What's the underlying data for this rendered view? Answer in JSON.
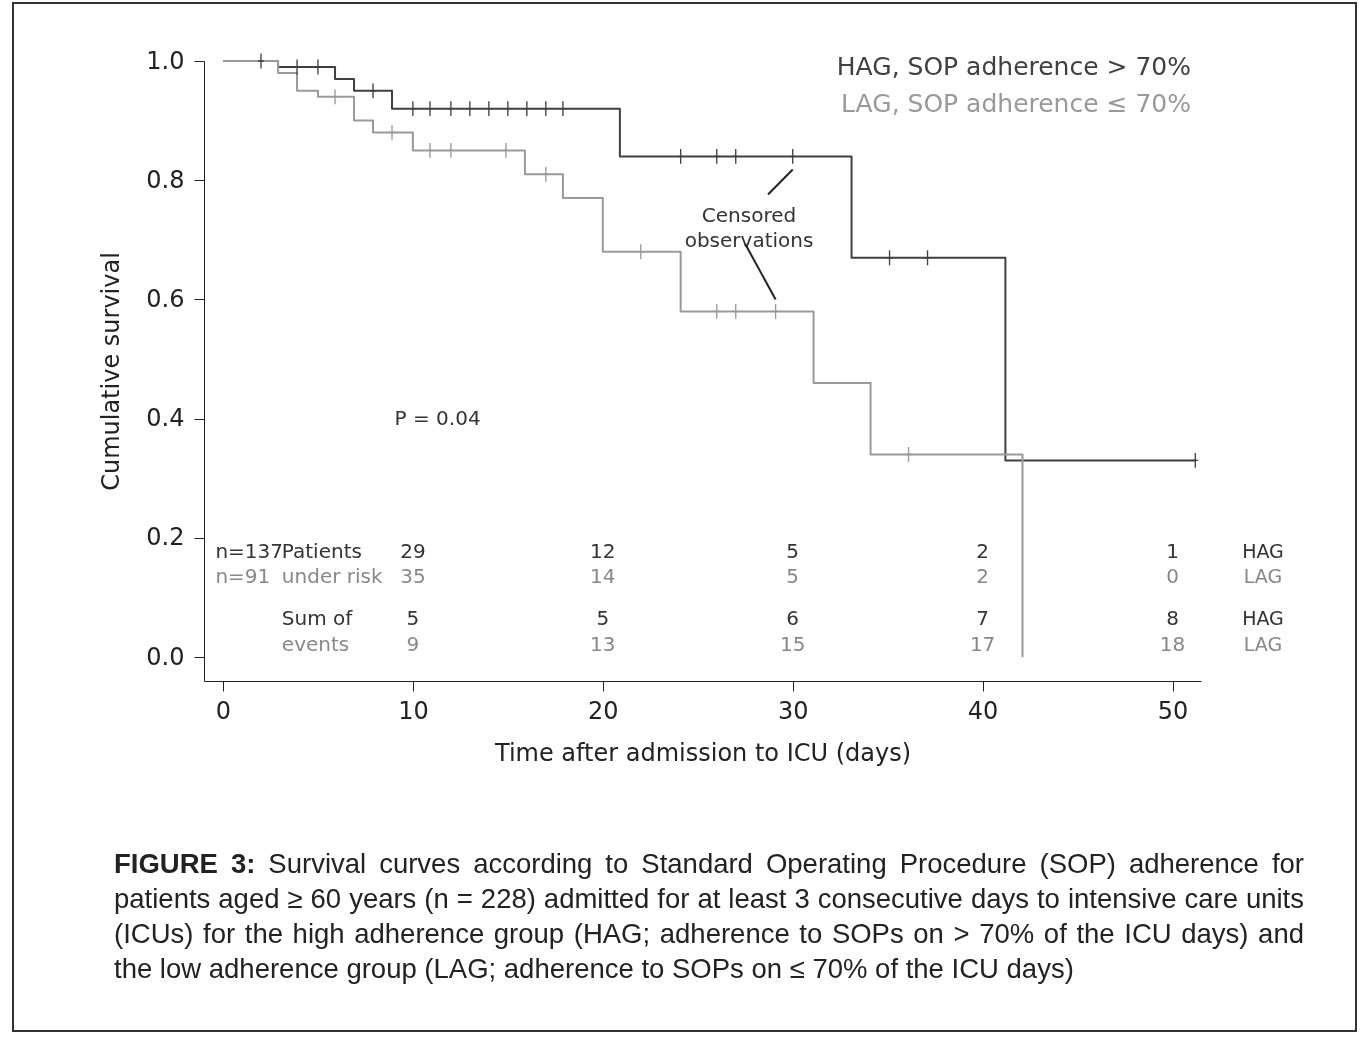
{
  "chart_data": {
    "type": "step",
    "xlabel": "Time after admission to ICU (days)",
    "ylabel": "Cumulative survival",
    "xlim": [
      -1,
      51.5
    ],
    "xticks": [
      0,
      10,
      20,
      30,
      40,
      50
    ],
    "ylim": [
      -0.04,
      1.0
    ],
    "yticks": [
      {
        "value": 0,
        "label": "0.0"
      },
      0.2,
      0.4,
      0.6,
      0.8,
      {
        "value": 1,
        "label": "1.0"
      }
    ],
    "grid": false,
    "legend": "top right",
    "line_style": "solid",
    "series": [
      {
        "name": "HAG, SOP adherence > 70%",
        "color": "#404040",
        "x": [
          0,
          2.9,
          5.9,
          6.9,
          8.9,
          20.9,
          33.1,
          41.2,
          51.2
        ],
        "values": [
          1.0,
          0.99,
          0.97,
          0.95,
          0.92,
          0.84,
          0.67,
          0.33,
          0.33
        ]
      },
      {
        "name": "LAG, SOP adherence ≤ 70%",
        "color": "#999999",
        "x": [
          0,
          2.9,
          3.9,
          5.0,
          6.9,
          7.9,
          10.0,
          15.9,
          17.9,
          20.0,
          24.1,
          31.1,
          34.1,
          42.1
        ],
        "values": [
          1.0,
          0.98,
          0.95,
          0.94,
          0.9,
          0.88,
          0.85,
          0.81,
          0.77,
          0.68,
          0.58,
          0.46,
          0.34,
          0.0
        ]
      },
      {
        "color": "#404040",
        "type": "scatter",
        "marker": "cross",
        "x": [
          2.0,
          3.9,
          5.0,
          7.9,
          10.0,
          10.9,
          12.0,
          13.0,
          14.0,
          15.0,
          16.0,
          17.0,
          17.9,
          24.1,
          26.0,
          27.0,
          30.0,
          35.1,
          37.1,
          51.2
        ],
        "values": [
          1.0,
          0.99,
          0.99,
          0.95,
          0.92,
          0.92,
          0.92,
          0.92,
          0.92,
          0.92,
          0.92,
          0.92,
          0.92,
          0.84,
          0.84,
          0.84,
          0.84,
          0.67,
          0.67,
          0.33
        ]
      },
      {
        "color": "#999999",
        "type": "scatter",
        "marker": "cross",
        "x": [
          5.9,
          8.9,
          10.9,
          12.0,
          14.9,
          17.0,
          22.0,
          26.0,
          27.0,
          29.1,
          36.1
        ],
        "values": [
          0.94,
          0.88,
          0.85,
          0.85,
          0.85,
          0.81,
          0.68,
          0.58,
          0.58,
          0.58,
          0.34
        ]
      }
    ],
    "annotations": [
      "P = 0.04",
      {
        "text": "Censored observations",
        "x": 29.1,
        "y": 0.58
      },
      "n=137",
      "Patients",
      "29",
      "12",
      "5",
      "2",
      "1",
      "HAG",
      "n=91",
      "under risk",
      "35",
      "14",
      "5",
      "2",
      "0",
      "LAG",
      "Sum of",
      "5",
      "5",
      "6",
      "7",
      "8",
      "HAG",
      "events",
      "9",
      "13",
      "15",
      "17",
      "18",
      "LAG",
      "FIGURE 3: Survival curves according to Standard Operating Procedure (SOP) adherence for patients aged ≥ 60 years (n = 228) admitted for at least 3 consecutive days to intensive care units (ICUs) for the high adherence group (HAG; adherence to SOPs on > 70% of the ICU days) and the low adherence group (LAG; adherence to SOPs on ≤ 70% of the ICU days)"
    ]
  }
}
